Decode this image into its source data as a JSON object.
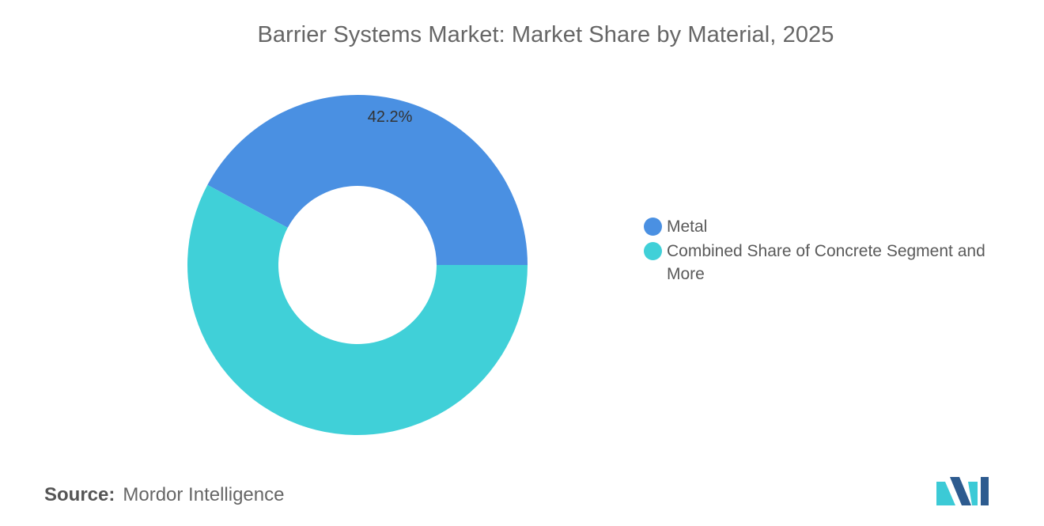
{
  "title": "Barrier Systems Market: Market Share by Material, 2025",
  "source": {
    "label": "Source:",
    "value": "Mordor Intelligence"
  },
  "logo": {
    "icon": "mordor-intelligence-logo",
    "colors": [
      "#2d5b8f",
      "#3ccad6"
    ]
  },
  "chart_data": {
    "type": "pie",
    "style": "donut",
    "title": "Barrier Systems Market: Market Share by Material, 2025",
    "legend_position": "right",
    "slices": [
      {
        "label": "Metal",
        "value": 42.2,
        "display": "42.2%",
        "color": "#4a90e2",
        "show_label": true
      },
      {
        "label": "Combined Share of Concrete Segment and More",
        "value": 57.8,
        "display": "",
        "color": "#40d0d8",
        "show_label": false
      }
    ]
  }
}
